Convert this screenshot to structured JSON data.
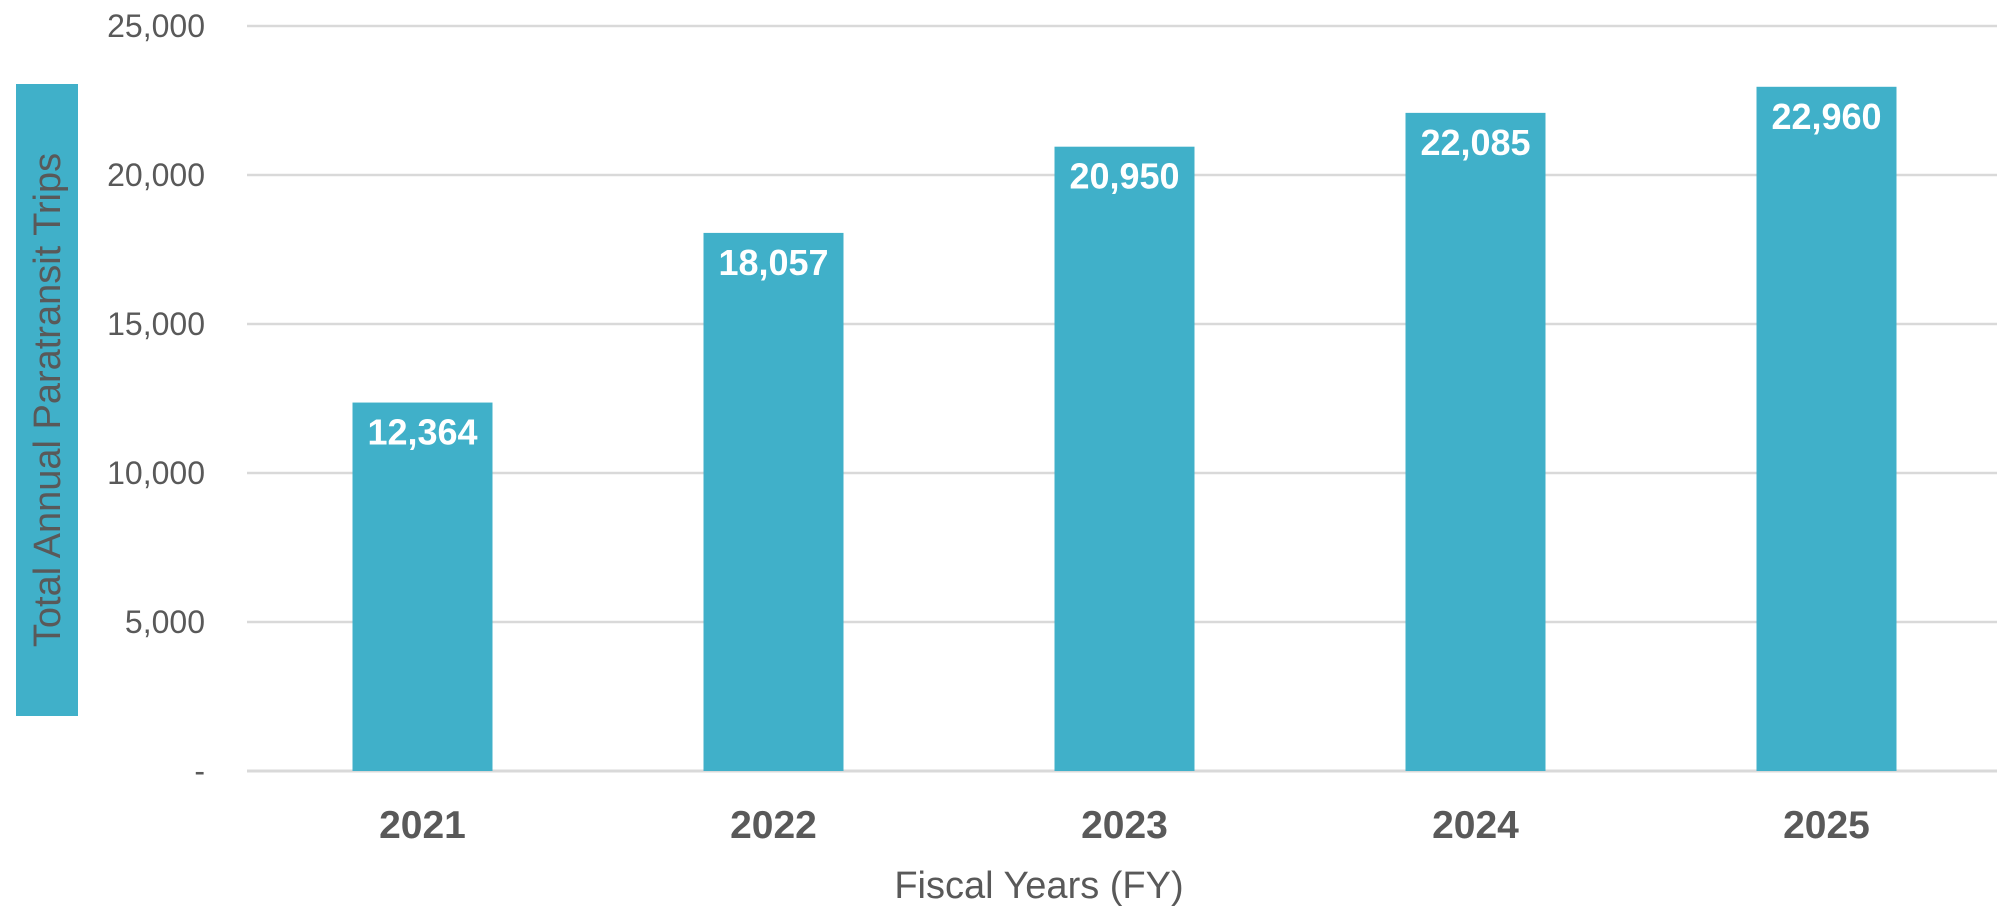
{
  "chart_data": {
    "type": "bar",
    "title": "",
    "xlabel": "Fiscal Years (FY)",
    "ylabel": "Total Annual Paratransit Trips",
    "categories": [
      "2021",
      "2022",
      "2023",
      "2024",
      "2025"
    ],
    "values": [
      12364,
      18057,
      20950,
      22085,
      22960
    ],
    "value_labels": [
      "12,364",
      "18,057",
      "20,950",
      "22,085",
      "22,960"
    ],
    "ylim": [
      0,
      25000
    ],
    "yticks": [
      0,
      5000,
      10000,
      15000,
      20000,
      25000
    ],
    "ytick_labels": [
      "-",
      "5,000",
      "10,000",
      "15,000",
      "20,000",
      "25,000"
    ],
    "grid": true,
    "legend": "none",
    "colors": {
      "bar": "#40b0c9",
      "ylabel_background": "#40b0c9",
      "text": "#595959",
      "grid": "#d9d9d9"
    }
  }
}
